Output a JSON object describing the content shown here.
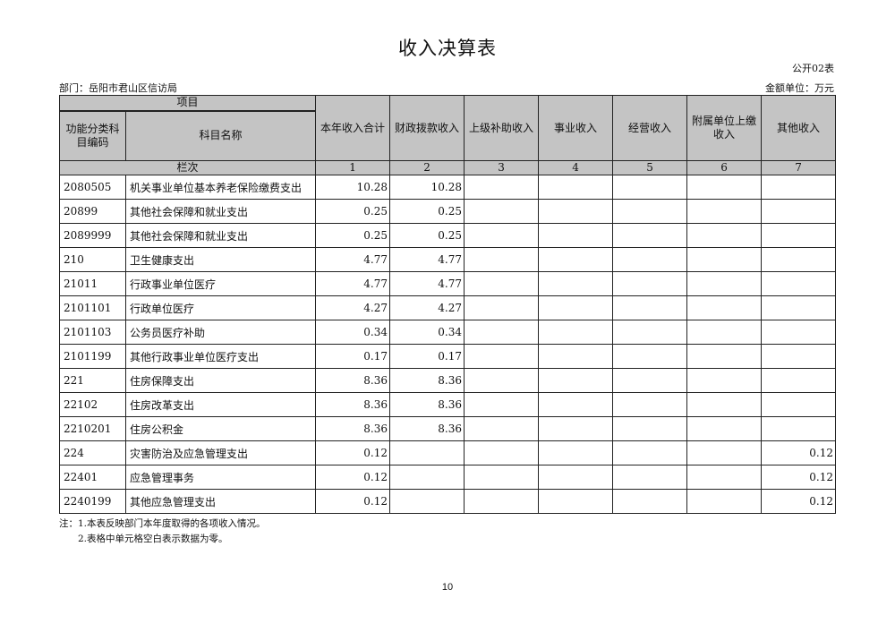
{
  "title": "收入决算表",
  "form_no": "公开02表",
  "department": "部门：岳阳市君山区信访局",
  "unit": "金额单位：万元",
  "header": {
    "project": "项目",
    "code": "功能分类科目编码",
    "name": "科目名称",
    "columns": [
      "本年收入合计",
      "财政拨款收入",
      "上级补助收入",
      "事业收入",
      "经营收入",
      "附属单位上缴收入",
      "其他收入"
    ],
    "row_index_label": "栏次",
    "column_numbers": [
      "1",
      "2",
      "3",
      "4",
      "5",
      "6",
      "7"
    ]
  },
  "rows": [
    {
      "code": "2080505",
      "name": "机关事业单位基本养老保险缴费支出",
      "values": [
        "10.28",
        "10.28",
        "",
        "",
        "",
        "",
        ""
      ]
    },
    {
      "code": "20899",
      "name": "其他社会保障和就业支出",
      "values": [
        "0.25",
        "0.25",
        "",
        "",
        "",
        "",
        ""
      ]
    },
    {
      "code": "2089999",
      "name": "其他社会保障和就业支出",
      "values": [
        "0.25",
        "0.25",
        "",
        "",
        "",
        "",
        ""
      ]
    },
    {
      "code": "210",
      "name": "卫生健康支出",
      "values": [
        "4.77",
        "4.77",
        "",
        "",
        "",
        "",
        ""
      ]
    },
    {
      "code": "21011",
      "name": "行政事业单位医疗",
      "values": [
        "4.77",
        "4.77",
        "",
        "",
        "",
        "",
        ""
      ]
    },
    {
      "code": "2101101",
      "name": "行政单位医疗",
      "values": [
        "4.27",
        "4.27",
        "",
        "",
        "",
        "",
        ""
      ]
    },
    {
      "code": "2101103",
      "name": "公务员医疗补助",
      "values": [
        "0.34",
        "0.34",
        "",
        "",
        "",
        "",
        ""
      ]
    },
    {
      "code": "2101199",
      "name": "其他行政事业单位医疗支出",
      "values": [
        "0.17",
        "0.17",
        "",
        "",
        "",
        "",
        ""
      ]
    },
    {
      "code": "221",
      "name": "住房保障支出",
      "values": [
        "8.36",
        "8.36",
        "",
        "",
        "",
        "",
        ""
      ]
    },
    {
      "code": "22102",
      "name": "住房改革支出",
      "values": [
        "8.36",
        "8.36",
        "",
        "",
        "",
        "",
        ""
      ]
    },
    {
      "code": "2210201",
      "name": "住房公积金",
      "values": [
        "8.36",
        "8.36",
        "",
        "",
        "",
        "",
        ""
      ]
    },
    {
      "code": "224",
      "name": "灾害防治及应急管理支出",
      "values": [
        "0.12",
        "",
        "",
        "",
        "",
        "",
        "0.12"
      ]
    },
    {
      "code": "22401",
      "name": "应急管理事务",
      "values": [
        "0.12",
        "",
        "",
        "",
        "",
        "",
        "0.12"
      ]
    },
    {
      "code": "2240199",
      "name": "其他应急管理支出",
      "values": [
        "0.12",
        "",
        "",
        "",
        "",
        "",
        "0.12"
      ]
    }
  ],
  "notes": [
    "注：1.本表反映部门本年度取得的各项收入情况。",
    "2.表格中单元格空白表示数据为零。"
  ],
  "page_number": "10"
}
